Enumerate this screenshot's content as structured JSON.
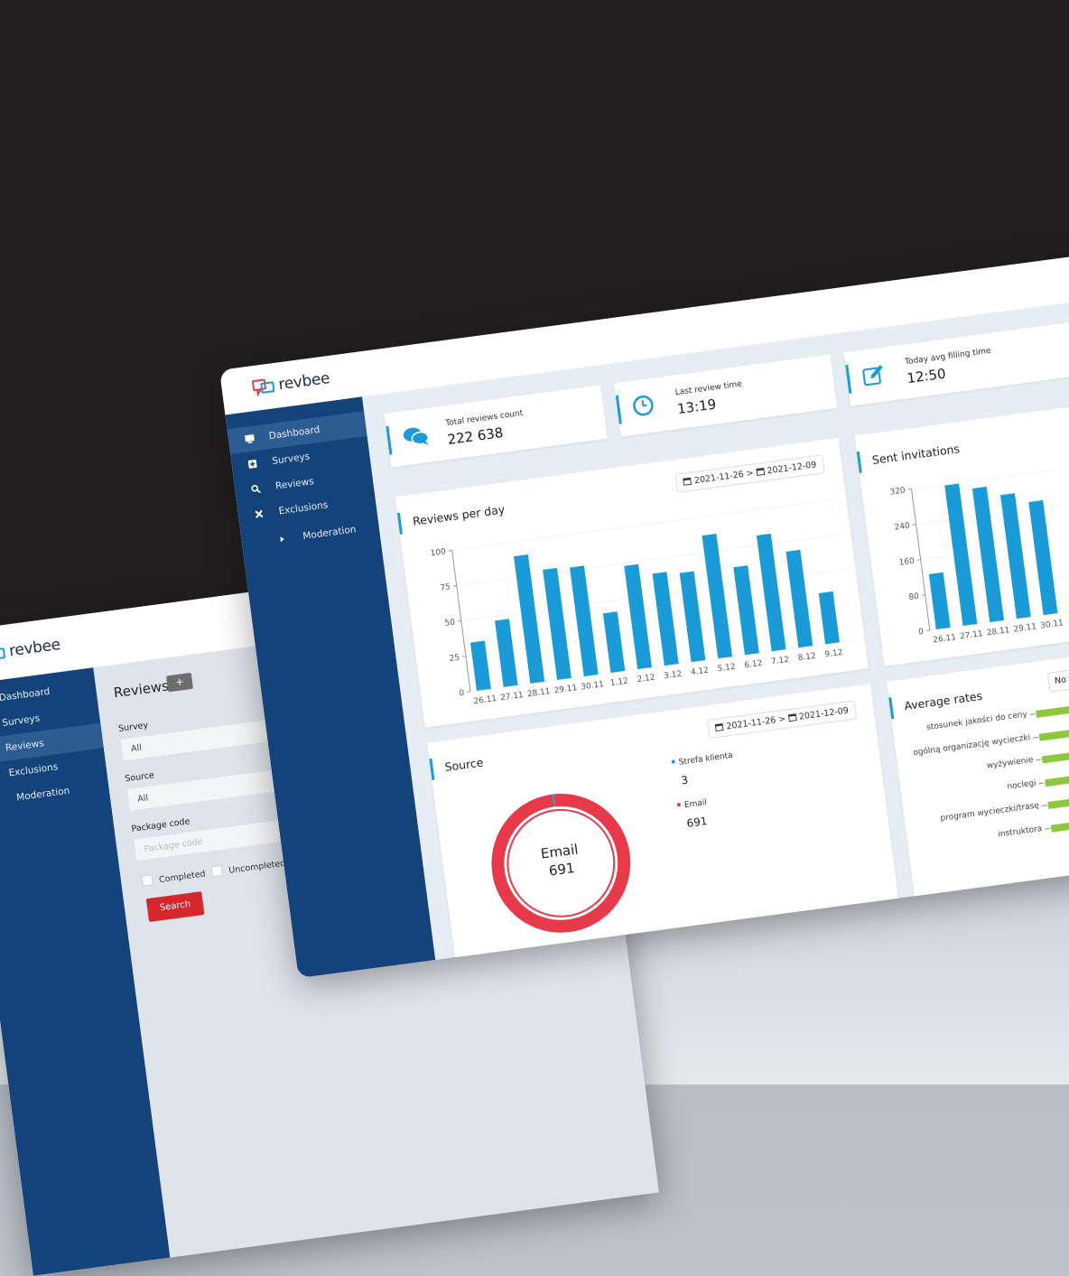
{
  "background_app": {
    "logo": "revbee",
    "nav": [
      "Dashboard",
      "Surveys",
      "Reviews",
      "Exclusions",
      "Moderation"
    ],
    "page_title": "Reviews",
    "add_button": "+",
    "form": {
      "survey_label": "Survey",
      "survey_value": "All",
      "source_label": "Source",
      "source_value": "All",
      "package_label": "Package code",
      "package_placeholder": "Package code",
      "completed": "Completed",
      "uncompleted": "Uncompleted",
      "search": "Search"
    }
  },
  "dashboard": {
    "logo": "revbee",
    "nav": [
      "Dashboard",
      "Surveys",
      "Reviews",
      "Exclusions",
      "Moderation"
    ],
    "stats": [
      {
        "label": "Total reviews count",
        "value": "222 638"
      },
      {
        "label": "Last review time",
        "value": "13:19"
      },
      {
        "label": "Today avg filling time",
        "value": "12:50"
      }
    ],
    "reviews_per_day": {
      "type": "bar",
      "title": "Reviews per day",
      "date_from": "2021-11-26",
      "date_separator": ">",
      "date_to": "2021-12-09",
      "categories": [
        "26.11",
        "27.11",
        "28.11",
        "29.11",
        "30.11",
        "1.12",
        "2.12",
        "3.12",
        "4.12",
        "5.12",
        "6.12",
        "7.12",
        "8.12",
        "9.12"
      ],
      "values": [
        34,
        47,
        90,
        78,
        77,
        42,
        73,
        65,
        63,
        87,
        62,
        82,
        68,
        36
      ],
      "color": "#1a9ad6",
      "ylim": [
        0,
        100
      ],
      "yticks": [
        0,
        25,
        50,
        75,
        100
      ]
    },
    "sent_invitations": {
      "type": "bar",
      "title": "Sent invitations",
      "categories": [
        "26.11",
        "27.11",
        "28.11",
        "29.11",
        "30.11"
      ],
      "values": [
        125,
        318,
        303,
        280,
        256
      ],
      "color": "#1a9ad6",
      "ylim": [
        0,
        320
      ],
      "yticks": [
        0,
        80,
        160,
        240,
        320
      ]
    },
    "source": {
      "type": "pie",
      "title": "Source",
      "date_from": "2021-11-26",
      "date_separator": ">",
      "date_to": "2021-12-09",
      "series": [
        {
          "name": "Strefa klienta",
          "color": "#1a9ad6",
          "value": 3
        },
        {
          "name": "Email",
          "color": "#e8394a",
          "value": 691
        }
      ]
    },
    "average_rates": {
      "title": "Average rates",
      "filter": "No",
      "categories": [
        "stosunek jakości do ceny",
        "ogólną organizację wycieczki",
        "wyżywienie",
        "noclegi",
        "program wycieczki/trasę",
        "instruktora"
      ],
      "color": "#8dc63f"
    }
  }
}
